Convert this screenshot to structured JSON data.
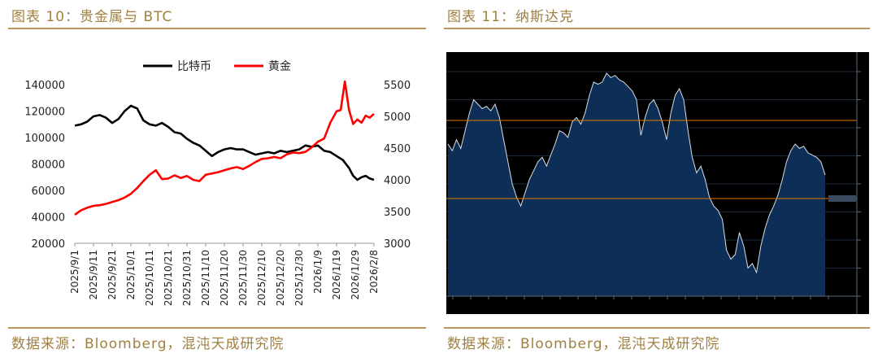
{
  "panels": {
    "left": {
      "title": "图表 10：贵金属与 BTC",
      "source": "数据来源：Bloomberg，混沌天成研究院"
    },
    "right": {
      "title": "图表 11：纳斯达克",
      "source": "数据来源：Bloomberg，混沌天成研究院"
    }
  },
  "colors": {
    "btc": "#000000",
    "gold": "#ff0000",
    "nasdaq_fill": "#0d2f57",
    "nasdaq_bg": "#000000",
    "ref_line": "#e07b00"
  },
  "chart_data": [
    {
      "type": "line",
      "x_tick_labels": [
        "2025/9/1",
        "2025/9/11",
        "2025/9/21",
        "2025/10/1",
        "2025/10/11",
        "2025/10/21",
        "2025/10/31",
        "2025/11/10",
        "2025/11/20",
        "2025/11/30",
        "2025/12/10",
        "2025/12/20",
        "2025/12/30",
        "2026/1/9",
        "2026/1/19",
        "2026/1/29",
        "2026/2/8"
      ],
      "y_left": {
        "ticks": [
          "140000",
          "120000",
          "100000",
          "80000",
          "60000",
          "40000",
          "20000"
        ],
        "lim": [
          20000,
          140000
        ]
      },
      "y_right": {
        "ticks": [
          "5500",
          "5000",
          "4500",
          "4000",
          "3500",
          "3000"
        ],
        "lim": [
          3000,
          5500
        ]
      },
      "legend": {
        "placement": "top-center"
      },
      "series": [
        {
          "name": "比特币",
          "axis": "left",
          "color": "#000000",
          "points": [
            [
              0,
              109000
            ],
            [
              3,
              110000
            ],
            [
              6,
              112000
            ],
            [
              9,
              116000
            ],
            [
              12,
              117000
            ],
            [
              15,
              115000
            ],
            [
              18,
              111000
            ],
            [
              21,
              114000
            ],
            [
              24,
              120000
            ],
            [
              27,
              124000
            ],
            [
              30,
              122000
            ],
            [
              33,
              113000
            ],
            [
              36,
              110000
            ],
            [
              39,
              109000
            ],
            [
              42,
              111000
            ],
            [
              45,
              108000
            ],
            [
              48,
              104000
            ],
            [
              51,
              103000
            ],
            [
              54,
              99000
            ],
            [
              57,
              96000
            ],
            [
              60,
              94000
            ],
            [
              63,
              90000
            ],
            [
              66,
              86000
            ],
            [
              69,
              89000
            ],
            [
              72,
              91000
            ],
            [
              75,
              92000
            ],
            [
              78,
              91000
            ],
            [
              81,
              91000
            ],
            [
              84,
              89000
            ],
            [
              87,
              87000
            ],
            [
              90,
              88000
            ],
            [
              93,
              89000
            ],
            [
              96,
              88000
            ],
            [
              99,
              90000
            ],
            [
              102,
              89000
            ],
            [
              105,
              90000
            ],
            [
              108,
              91000
            ],
            [
              111,
              94000
            ],
            [
              114,
              93000
            ],
            [
              117,
              94000
            ],
            [
              120,
              90000
            ],
            [
              123,
              89000
            ],
            [
              126,
              86000
            ],
            [
              129,
              83000
            ],
            [
              132,
              77000
            ],
            [
              134,
              71000
            ],
            [
              136,
              68000
            ],
            [
              138,
              70000
            ],
            [
              140,
              71000
            ],
            [
              142,
              69000
            ],
            [
              144,
              68000
            ]
          ]
        },
        {
          "name": "黄金",
          "axis": "right",
          "color": "#ff0000",
          "points": [
            [
              0,
              3450
            ],
            [
              3,
              3520
            ],
            [
              6,
              3560
            ],
            [
              9,
              3590
            ],
            [
              12,
              3600
            ],
            [
              15,
              3620
            ],
            [
              18,
              3650
            ],
            [
              21,
              3680
            ],
            [
              24,
              3720
            ],
            [
              27,
              3780
            ],
            [
              30,
              3870
            ],
            [
              33,
              3980
            ],
            [
              36,
              4080
            ],
            [
              39,
              4150
            ],
            [
              42,
              4010
            ],
            [
              45,
              4020
            ],
            [
              48,
              4070
            ],
            [
              51,
              4030
            ],
            [
              54,
              4060
            ],
            [
              57,
              4000
            ],
            [
              60,
              3980
            ],
            [
              63,
              4080
            ],
            [
              66,
              4100
            ],
            [
              69,
              4120
            ],
            [
              72,
              4150
            ],
            [
              75,
              4180
            ],
            [
              78,
              4200
            ],
            [
              81,
              4170
            ],
            [
              84,
              4220
            ],
            [
              87,
              4280
            ],
            [
              90,
              4330
            ],
            [
              93,
              4340
            ],
            [
              96,
              4360
            ],
            [
              99,
              4340
            ],
            [
              102,
              4400
            ],
            [
              105,
              4430
            ],
            [
              108,
              4420
            ],
            [
              111,
              4440
            ],
            [
              114,
              4510
            ],
            [
              117,
              4600
            ],
            [
              120,
              4650
            ],
            [
              123,
              4900
            ],
            [
              126,
              5080
            ],
            [
              128,
              5100
            ],
            [
              130,
              5550
            ],
            [
              132,
              5100
            ],
            [
              134,
              4880
            ],
            [
              136,
              4950
            ],
            [
              138,
              4900
            ],
            [
              140,
              5010
            ],
            [
              142,
              4980
            ],
            [
              144,
              5040
            ]
          ]
        }
      ]
    },
    {
      "type": "area",
      "series": [
        {
          "values": [
            68,
            65,
            70,
            66,
            74,
            82,
            88,
            86,
            84,
            85,
            83,
            86,
            80,
            70,
            60,
            50,
            44,
            40,
            46,
            52,
            56,
            60,
            62,
            58,
            63,
            68,
            74,
            73,
            71,
            78,
            80,
            77,
            82,
            90,
            96,
            95,
            96,
            100,
            98,
            99,
            97,
            96,
            94,
            92,
            88,
            72,
            80,
            86,
            88,
            84,
            78,
            70,
            82,
            90,
            93,
            88,
            74,
            62,
            55,
            58,
            52,
            44,
            40,
            38,
            34,
            20,
            16,
            18,
            28,
            22,
            12,
            14,
            10,
            22,
            30,
            36,
            40,
            45,
            52,
            60,
            65,
            68,
            66,
            67,
            64,
            63,
            62,
            60,
            54
          ]
        }
      ]
    }
  ]
}
